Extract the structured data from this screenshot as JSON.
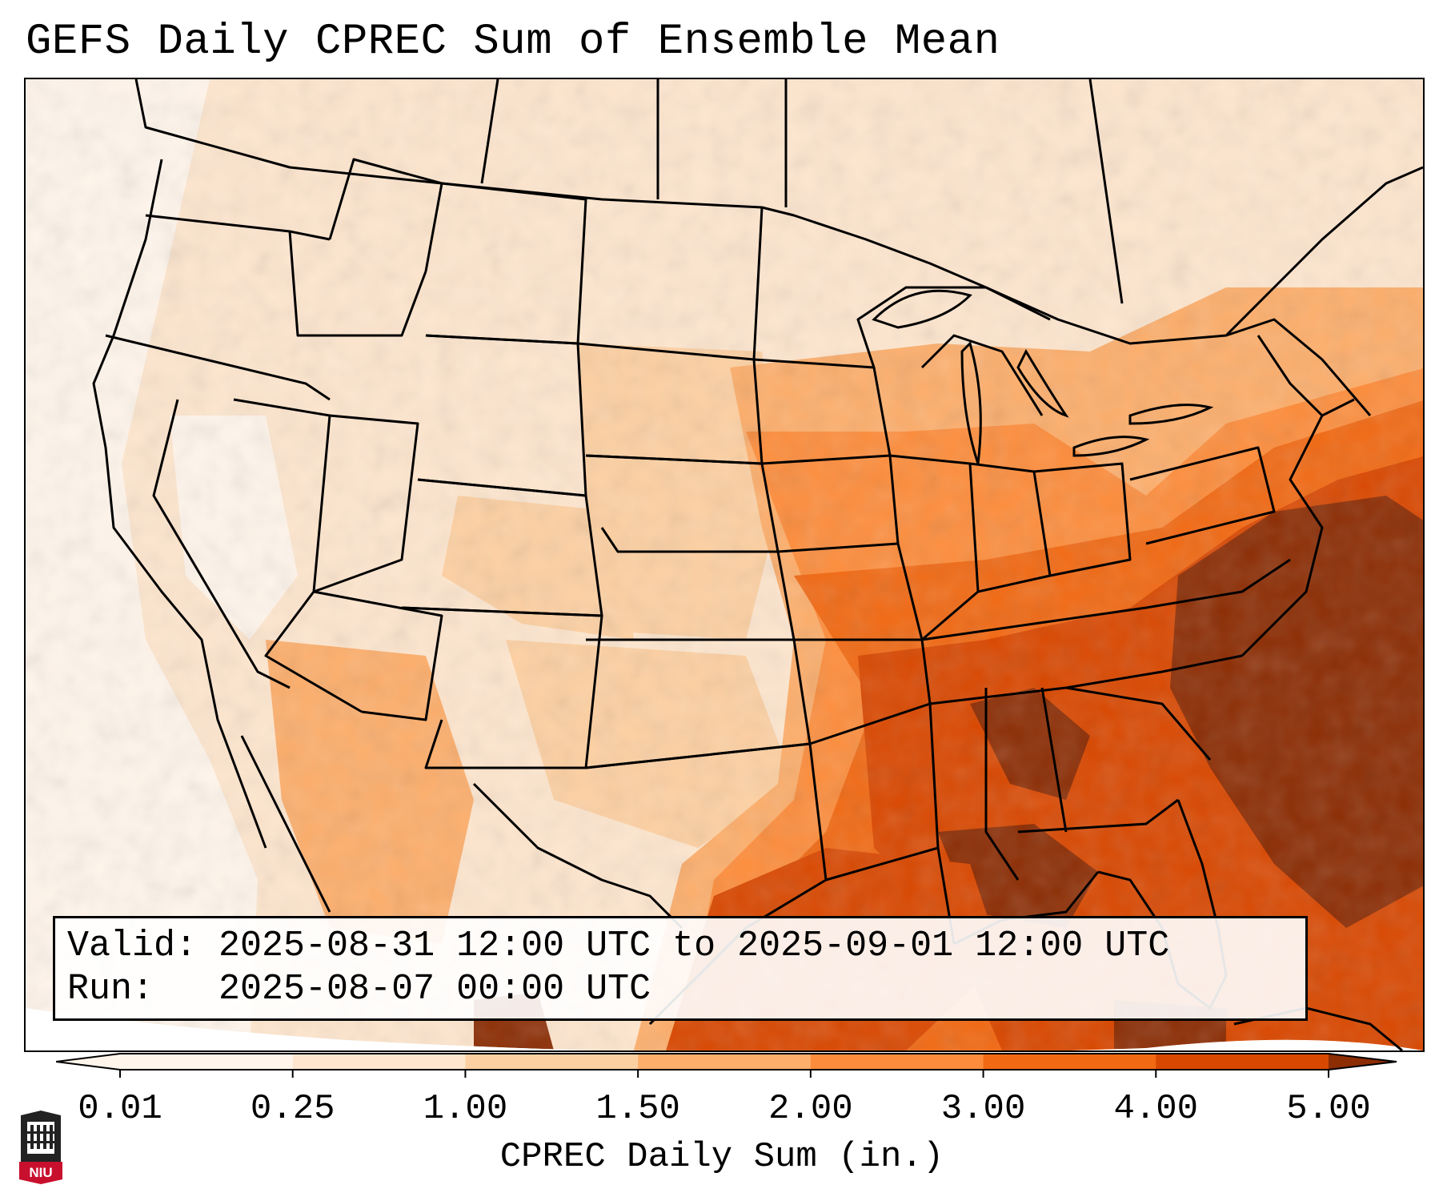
{
  "title": "GEFS Daily CPREC Sum of Ensemble Mean",
  "info": {
    "valid_line": "Valid: 2025-08-31 12:00 UTC to 2025-09-01 12:00 UTC",
    "run_line": "Run:   2025-08-07 00:00 UTC"
  },
  "colorbar": {
    "label": "CPREC Daily Sum (in.)",
    "ticks": [
      "0.01",
      "0.25",
      "1.00",
      "1.50",
      "2.00",
      "3.00",
      "4.00",
      "5.00"
    ],
    "colors": [
      "#fff5eb",
      "#fee6ce",
      "#fdd0a2",
      "#fdae6b",
      "#fd8d3c",
      "#f16913",
      "#d94801",
      "#8c2d04"
    ],
    "extend": "both"
  },
  "map": {
    "field": "CPREC",
    "region": "Contiguous United States",
    "projection": "Lambert Conformal",
    "heaviest_area": "Southeast US and western Atlantic (3.00-5.00+ in.)"
  },
  "logo": {
    "text": "NIU",
    "icon": "university-logo-icon",
    "color": "#c8102e"
  }
}
